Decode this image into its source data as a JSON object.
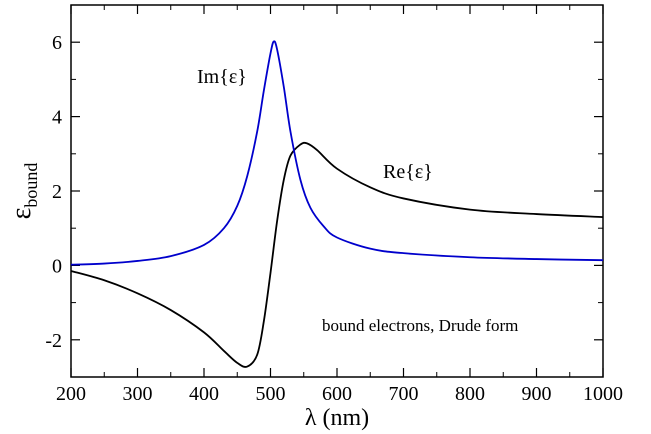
{
  "chart_data": {
    "type": "line",
    "xlabel": "λ (nm)",
    "ylabel": "ε",
    "ylabel_sub": "bound",
    "xlim": [
      200,
      1000
    ],
    "ylim": [
      -3,
      7
    ],
    "x_ticks": [
      200,
      300,
      400,
      500,
      600,
      700,
      800,
      900,
      1000
    ],
    "y_ticks": [
      -2,
      0,
      2,
      4,
      6
    ],
    "grid": false,
    "annotation": "bound electrons, Drude form",
    "series": [
      {
        "name": "Re{ε}",
        "color": "#000000",
        "x": [
          200,
          250,
          300,
          350,
          400,
          430,
          450,
          465,
          480,
          490,
          500,
          510,
          520,
          530,
          545,
          555,
          570,
          600,
          650,
          700,
          800,
          900,
          1000
        ],
        "y": [
          -0.15,
          -0.4,
          -0.75,
          -1.2,
          -1.8,
          -2.3,
          -2.62,
          -2.72,
          -2.4,
          -1.5,
          -0.2,
          1.2,
          2.3,
          2.95,
          3.25,
          3.28,
          3.1,
          2.6,
          2.1,
          1.8,
          1.5,
          1.38,
          1.3
        ]
      },
      {
        "name": "Im{ε}",
        "color": "#0000cc",
        "x": [
          200,
          250,
          300,
          350,
          400,
          430,
          450,
          465,
          480,
          490,
          500,
          505,
          510,
          520,
          530,
          545,
          560,
          580,
          600,
          650,
          700,
          800,
          900,
          1000
        ],
        "y": [
          0.02,
          0.05,
          0.12,
          0.25,
          0.55,
          1.0,
          1.6,
          2.4,
          3.6,
          4.7,
          5.7,
          6.02,
          5.8,
          4.8,
          3.6,
          2.3,
          1.55,
          1.05,
          0.75,
          0.45,
          0.33,
          0.22,
          0.17,
          0.14
        ]
      }
    ]
  }
}
